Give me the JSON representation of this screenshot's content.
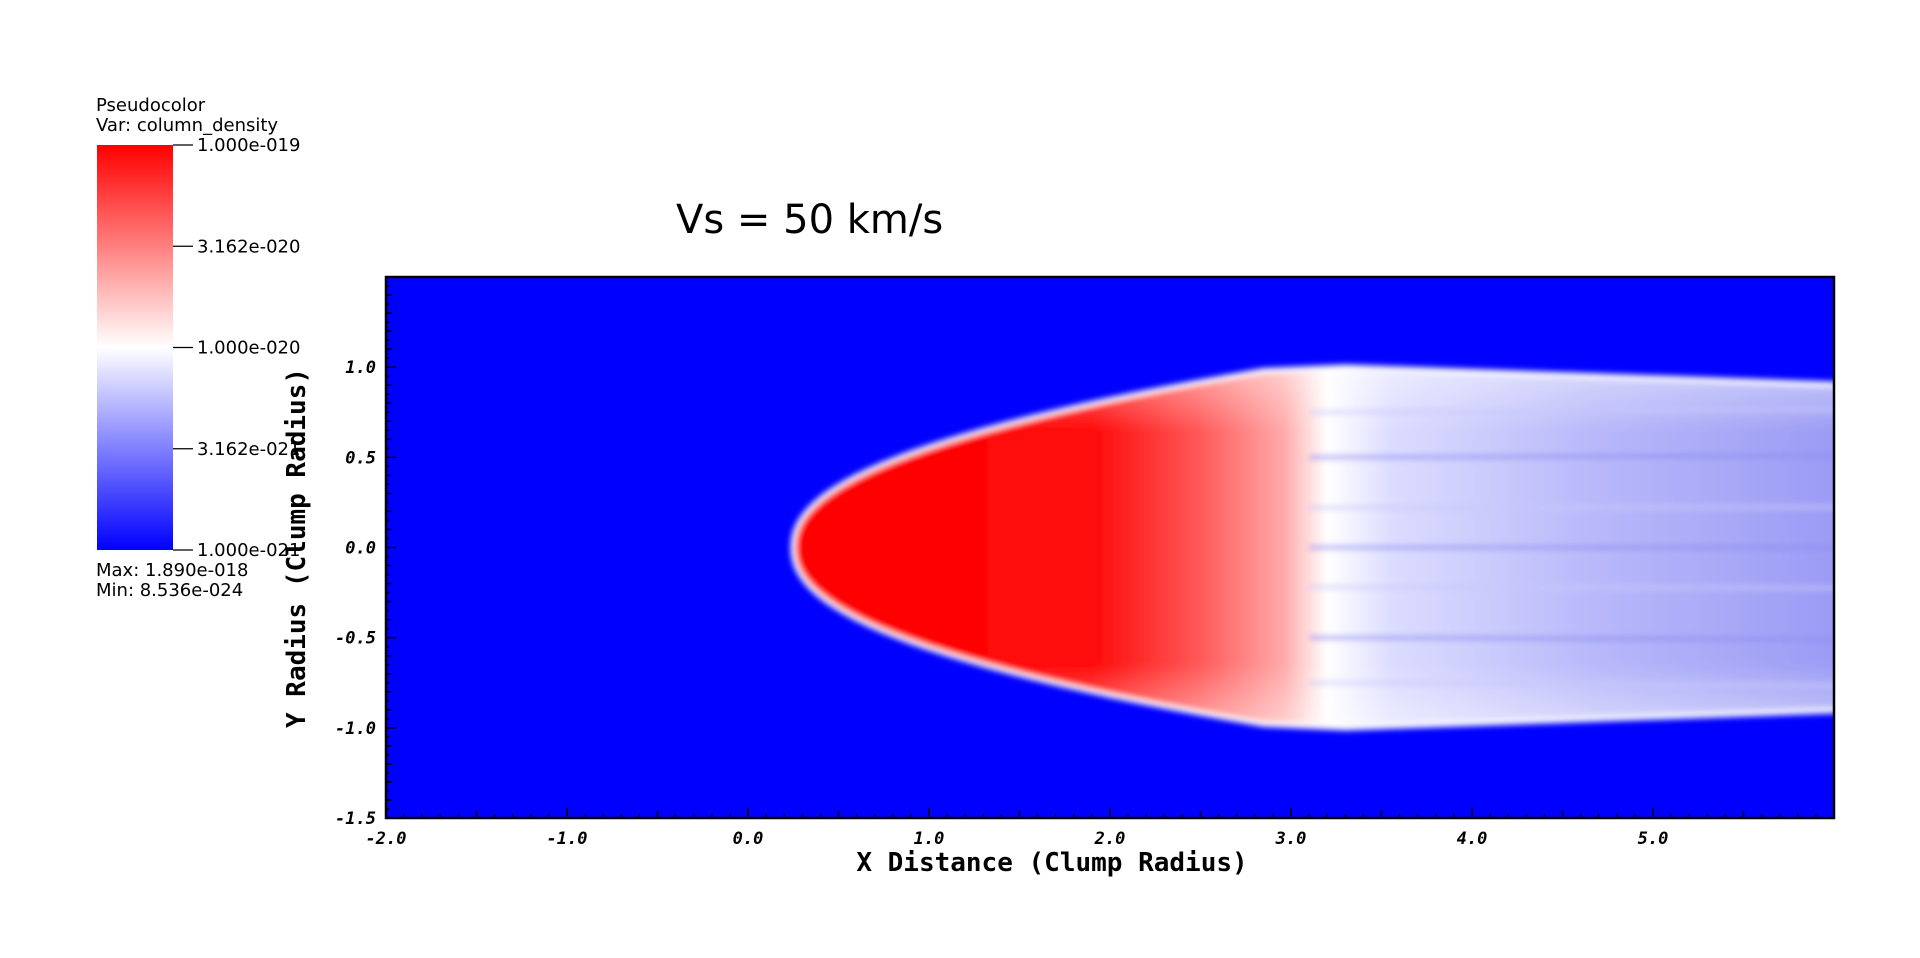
{
  "legend": {
    "plot_type": "Pseudocolor",
    "var_label": "Var: column_density",
    "max_label": "Max:  1.890e-018",
    "min_label": "Min:  8.536e-024",
    "colors": {
      "high": "#ff0000",
      "mid": "#ffffff",
      "low": "#0000ff"
    }
  },
  "chart_data": {
    "type": "heatmap",
    "title": "Vs = 50 km/s",
    "xlabel": "X Distance (Clump Radius)",
    "ylabel": "Y Radius (Clump Radius)",
    "xlim": [
      -2.0,
      6.0
    ],
    "ylim": [
      -1.5,
      1.5
    ],
    "x_ticks": [
      {
        "value": -2.0,
        "label": "-2.0"
      },
      {
        "value": -1.0,
        "label": "-1.0"
      },
      {
        "value": 0.0,
        "label": "0.0"
      },
      {
        "value": 1.0,
        "label": "1.0"
      },
      {
        "value": 2.0,
        "label": "2.0"
      },
      {
        "value": 3.0,
        "label": "3.0"
      },
      {
        "value": 4.0,
        "label": "4.0"
      },
      {
        "value": 5.0,
        "label": "5.0"
      }
    ],
    "y_ticks": [
      {
        "value": -1.5,
        "label": "-1.5"
      },
      {
        "value": -1.0,
        "label": "-1.0"
      },
      {
        "value": -0.5,
        "label": "-0.5"
      },
      {
        "value": 0.0,
        "label": "0.0"
      },
      {
        "value": 0.5,
        "label": "0.5"
      },
      {
        "value": 1.0,
        "label": "1.0"
      }
    ],
    "colorbar": {
      "scale": "log",
      "range": [
        1e-21,
        1e-19
      ],
      "ticks": [
        {
          "value": 1e-19,
          "label": "1.000e-019"
        },
        {
          "value": 3.162e-20,
          "label": "3.162e-020"
        },
        {
          "value": 1e-20,
          "label": "1.000e-020"
        },
        {
          "value": 3.162e-21,
          "label": "3.162e-021"
        },
        {
          "value": 1e-21,
          "label": "1.000e-021"
        }
      ]
    },
    "background_color": "#0000ff",
    "features": {
      "bow_apex_x": 0.25,
      "clump_width": 1.0,
      "tail_end_x": 5.95,
      "red_core_end_x": 2.8,
      "tail_halfwidth": 0.9
    }
  }
}
